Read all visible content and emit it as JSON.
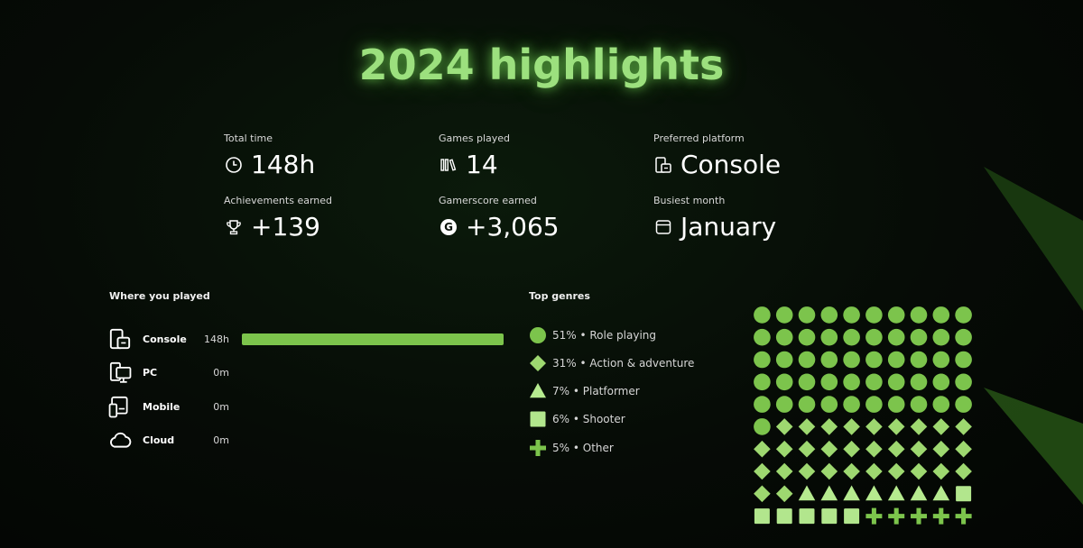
{
  "title": "2024 highlights",
  "stats": [
    {
      "label": "Total time",
      "value": "148h",
      "icon": "clock-icon"
    },
    {
      "label": "Games played",
      "value": "14",
      "icon": "library-icon"
    },
    {
      "label": "Preferred platform",
      "value": "Console",
      "icon": "console-icon"
    },
    {
      "label": "Achievements earned",
      "value": "+139",
      "icon": "trophy-icon"
    },
    {
      "label": "Gamerscore earned",
      "value": "+3,065",
      "icon": "gamerscore-icon",
      "glyph": "G"
    },
    {
      "label": "Busiest month",
      "value": "January",
      "icon": "calendar-icon"
    }
  ],
  "platforms_title": "Where you played",
  "platforms": [
    {
      "name": "Console",
      "hours": "148h",
      "share": 1.0,
      "icon": "console-icon"
    },
    {
      "name": "PC",
      "hours": "0m",
      "share": 0,
      "icon": "pc-icon"
    },
    {
      "name": "Mobile",
      "hours": "0m",
      "share": 0,
      "icon": "mobile-icon"
    },
    {
      "name": "Cloud",
      "hours": "0m",
      "share": 0,
      "icon": "cloud-icon"
    }
  ],
  "genres_title": "Top genres",
  "genres": [
    {
      "label": "51% • Role playing",
      "percent": 51,
      "shape": "circle",
      "color": "#7cc44c"
    },
    {
      "label": "31% • Action & adventure",
      "percent": 31,
      "shape": "diamond",
      "color": "#9ed870"
    },
    {
      "label": "7% • Platformer",
      "percent": 7,
      "shape": "triangle",
      "color": "#b6eb8f"
    },
    {
      "label": "6% • Shooter",
      "percent": 6,
      "shape": "square",
      "color": "#b2e68d"
    },
    {
      "label": "5% • Other",
      "percent": 5,
      "shape": "plus",
      "color": "#7cc44c"
    }
  ],
  "colors": {
    "accent": "#9ce07e",
    "bar": "#7cc44c",
    "background": "#060b06"
  }
}
